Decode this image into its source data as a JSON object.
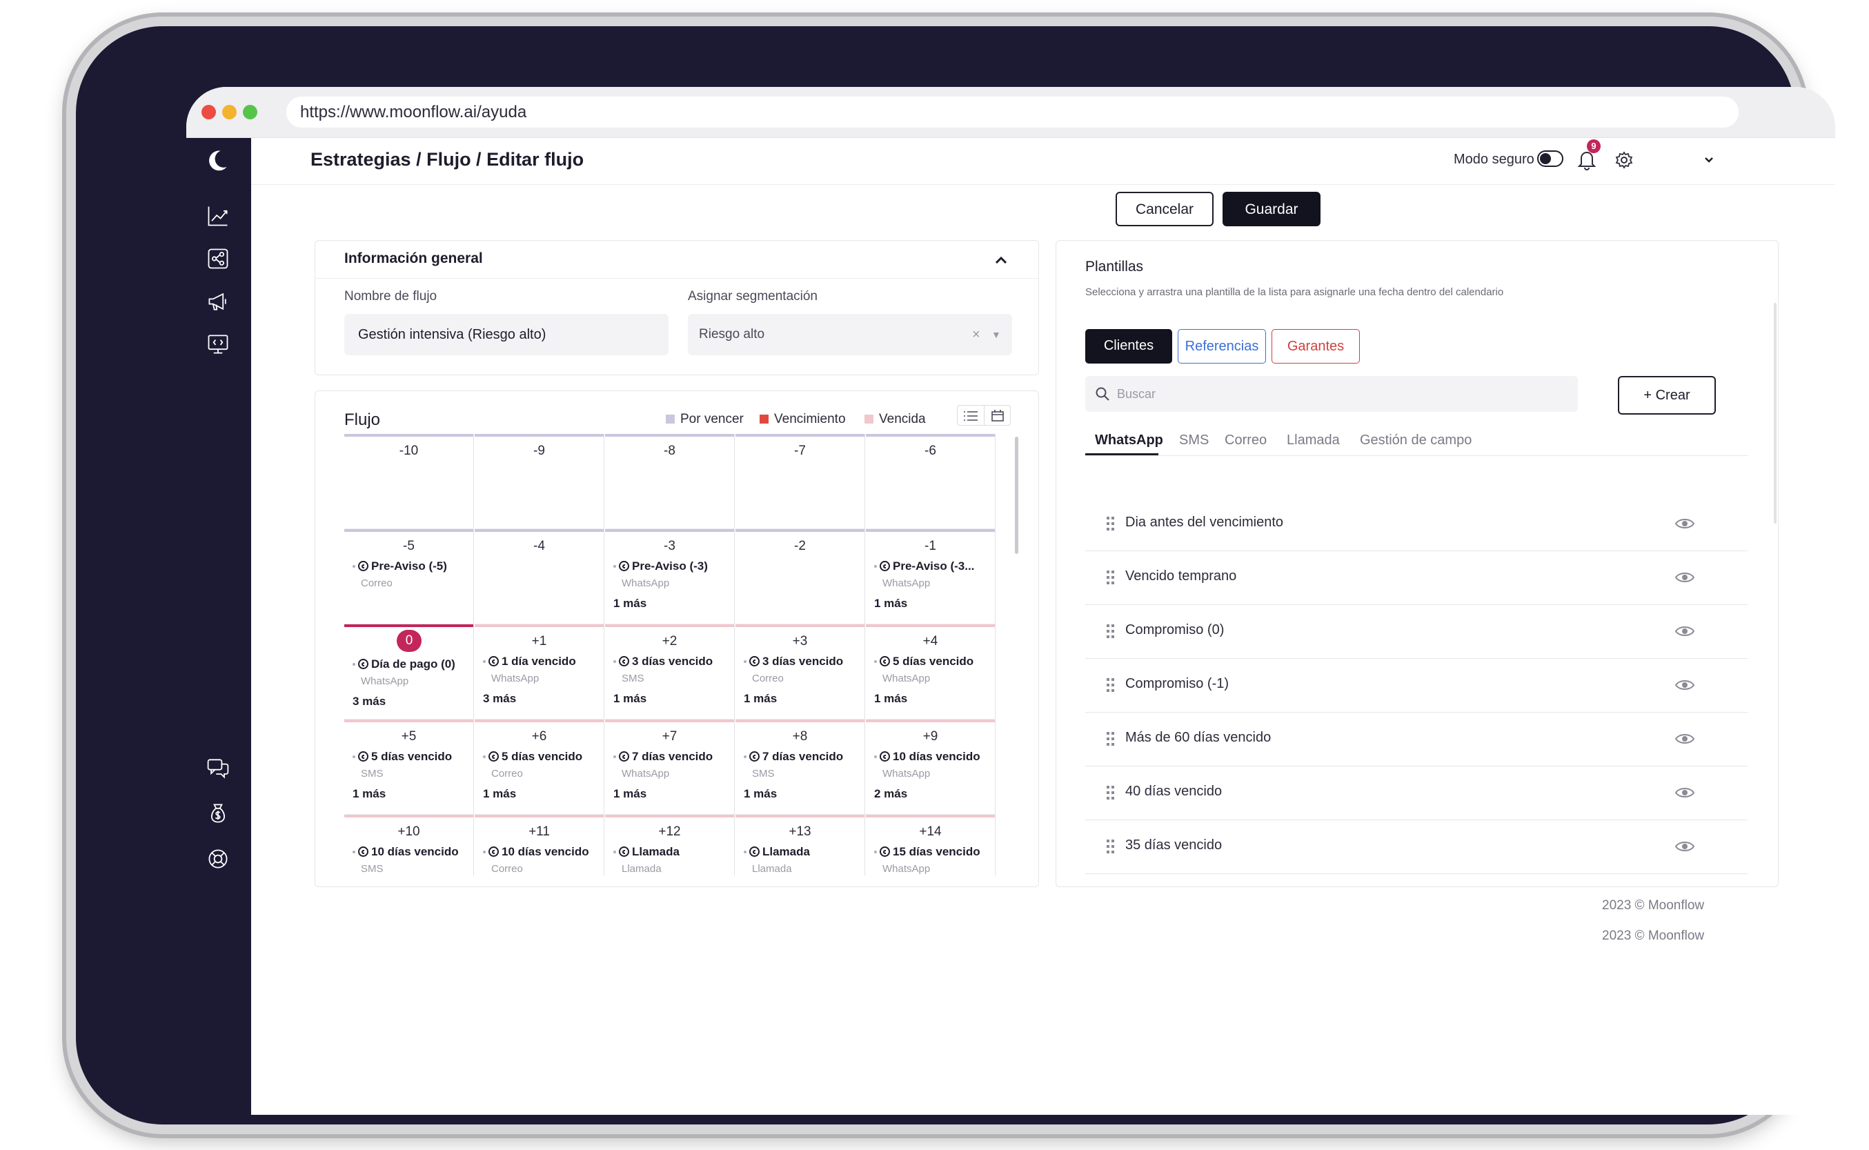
{
  "browser": {
    "url": "https://www.moonflow.ai/ayuda"
  },
  "header": {
    "breadcrumb": "Estrategias / Flujo / Editar flujo",
    "safe_mode_label": "Modo seguro",
    "notification_count": "9"
  },
  "actions": {
    "cancel": "Cancelar",
    "save": "Guardar"
  },
  "general": {
    "title": "Información general",
    "flow_name_label": "Nombre de flujo",
    "flow_name_value": "Gestión intensiva (Riesgo alto)",
    "segment_label": "Asignar segmentación",
    "segment_value": "Riesgo alto"
  },
  "flow": {
    "title": "Flujo",
    "legend": [
      "Por vencer",
      "Vencimiento",
      "Vencida"
    ],
    "colors": {
      "por_vencer": "#c9c6dd",
      "vencimiento": "#e0493e",
      "vencida": "#f1c7cd",
      "today_bar": "#c2265a"
    },
    "rows": [
      [
        {
          "day": "-10"
        },
        {
          "day": "-9"
        },
        {
          "day": "-8"
        },
        {
          "day": "-7"
        },
        {
          "day": "-6"
        }
      ],
      [
        {
          "day": "-5",
          "event": "Pre-Aviso (-5)",
          "channel": "Correo"
        },
        {
          "day": "-4"
        },
        {
          "day": "-3",
          "event": "Pre-Aviso (-3)",
          "channel": "WhatsApp",
          "more": "1 más"
        },
        {
          "day": "-2"
        },
        {
          "day": "-1",
          "event": "Pre-Aviso (-3...",
          "channel": "WhatsApp",
          "more": "1 más"
        }
      ],
      [
        {
          "day": "0",
          "event": "Día de pago (0)",
          "channel": "WhatsApp",
          "more": "3 más"
        },
        {
          "day": "+1",
          "event": "1 día vencido",
          "channel": "WhatsApp",
          "more": "3 más"
        },
        {
          "day": "+2",
          "event": "3 días vencido",
          "channel": "SMS",
          "more": "1 más"
        },
        {
          "day": "+3",
          "event": "3 días vencido",
          "channel": "Correo",
          "more": "1 más"
        },
        {
          "day": "+4",
          "event": "5 días vencido",
          "channel": "WhatsApp",
          "more": "1 más"
        }
      ],
      [
        {
          "day": "+5",
          "event": "5 días vencido",
          "channel": "SMS",
          "more": "1 más"
        },
        {
          "day": "+6",
          "event": "5 días vencido",
          "channel": "Correo",
          "more": "1 más"
        },
        {
          "day": "+7",
          "event": "7 días vencido",
          "channel": "WhatsApp",
          "more": "1 más"
        },
        {
          "day": "+8",
          "event": "7 días vencido",
          "channel": "SMS",
          "more": "1 más"
        },
        {
          "day": "+9",
          "event": "10 días vencido",
          "channel": "WhatsApp",
          "more": "2 más"
        }
      ],
      [
        {
          "day": "+10",
          "event": "10 días vencido",
          "channel": "SMS"
        },
        {
          "day": "+11",
          "event": "10 días vencido",
          "channel": "Correo"
        },
        {
          "day": "+12",
          "event": "Llamada",
          "channel": "Llamada"
        },
        {
          "day": "+13",
          "event": "Llamada",
          "channel": "Llamada"
        },
        {
          "day": "+14",
          "event": "15 días vencido",
          "channel": "WhatsApp"
        }
      ]
    ]
  },
  "templates": {
    "title": "Plantillas",
    "subtitle": "Selecciona y arrastra una plantilla de la lista para asignarle una fecha dentro del calendario",
    "audience_tabs": [
      "Clientes",
      "Referencias",
      "Garantes"
    ],
    "search_placeholder": "Buscar",
    "create_label": "+ Crear",
    "channel_tabs": [
      "WhatsApp",
      "SMS",
      "Correo",
      "Llamada",
      "Gestión de campo"
    ],
    "items": [
      "Dia antes del vencimiento",
      "Vencido temprano",
      "Compromiso (0)",
      "Compromiso (-1)",
      "Más de 60 días vencido",
      "40 días vencido",
      "35 días vencido"
    ],
    "colors": {
      "referencias": "#3b6fd6",
      "garantes": "#d0403d"
    }
  },
  "footer": {
    "copyright_1": "2023 © Moonflow",
    "copyright_2": "2023 © Moonflow"
  }
}
